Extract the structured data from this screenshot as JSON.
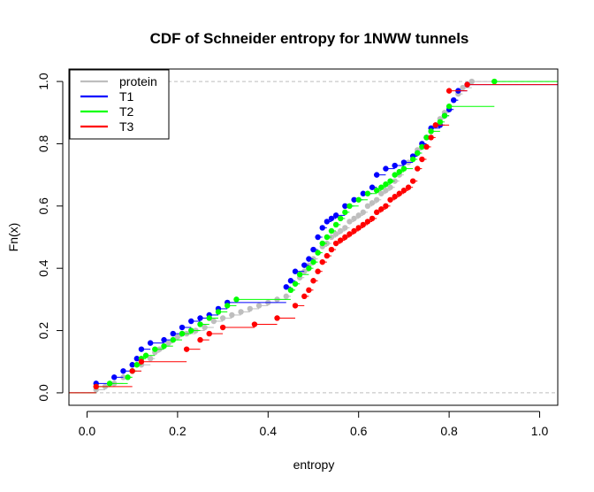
{
  "chart_data": {
    "type": "line",
    "step": true,
    "title": "CDF of Schneider entropy for 1NWW  tunnels",
    "xlabel": "entropy",
    "ylabel": "Fn(x)",
    "xlim": [
      -0.04,
      1.04
    ],
    "ylim": [
      -0.04,
      1.04
    ],
    "xticks": [
      0.0,
      0.2,
      0.4,
      0.6,
      0.8,
      1.0
    ],
    "yticks": [
      0.0,
      0.2,
      0.4,
      0.6,
      0.8,
      1.0
    ],
    "xtick_labels": [
      "0.0",
      "0.2",
      "0.4",
      "0.6",
      "0.8",
      "1.0"
    ],
    "ytick_labels": [
      "0.0",
      "0.2",
      "0.4",
      "0.6",
      "0.8",
      "1.0"
    ],
    "reference_lines_y": [
      0,
      1
    ],
    "legend_position": "top-left",
    "series": [
      {
        "name": "protein",
        "color": "#bebebe",
        "x": [
          0.02,
          0.04,
          0.06,
          0.08,
          0.1,
          0.12,
          0.14,
          0.15,
          0.16,
          0.17,
          0.18,
          0.19,
          0.2,
          0.21,
          0.22,
          0.24,
          0.26,
          0.28,
          0.3,
          0.32,
          0.34,
          0.36,
          0.38,
          0.4,
          0.42,
          0.44,
          0.45,
          0.46,
          0.47,
          0.48,
          0.49,
          0.5,
          0.51,
          0.52,
          0.53,
          0.54,
          0.55,
          0.56,
          0.57,
          0.58,
          0.59,
          0.6,
          0.61,
          0.62,
          0.63,
          0.64,
          0.65,
          0.66,
          0.67,
          0.68,
          0.69,
          0.7,
          0.71,
          0.72,
          0.73,
          0.74,
          0.75,
          0.76,
          0.77,
          0.78,
          0.79,
          0.8,
          0.81,
          0.82,
          0.83,
          0.85
        ],
        "y": [
          0.01,
          0.02,
          0.03,
          0.05,
          0.07,
          0.09,
          0.11,
          0.13,
          0.14,
          0.15,
          0.16,
          0.17,
          0.18,
          0.19,
          0.19,
          0.2,
          0.21,
          0.23,
          0.24,
          0.25,
          0.26,
          0.27,
          0.28,
          0.29,
          0.3,
          0.31,
          0.33,
          0.35,
          0.37,
          0.39,
          0.41,
          0.43,
          0.45,
          0.47,
          0.48,
          0.5,
          0.51,
          0.52,
          0.53,
          0.55,
          0.56,
          0.57,
          0.58,
          0.6,
          0.61,
          0.62,
          0.64,
          0.65,
          0.66,
          0.68,
          0.7,
          0.72,
          0.74,
          0.76,
          0.78,
          0.8,
          0.82,
          0.84,
          0.86,
          0.88,
          0.9,
          0.92,
          0.94,
          0.96,
          0.98,
          1.0
        ]
      },
      {
        "name": "T1",
        "color": "#0000ff",
        "x": [
          0.02,
          0.06,
          0.08,
          0.1,
          0.11,
          0.12,
          0.14,
          0.17,
          0.19,
          0.21,
          0.23,
          0.25,
          0.27,
          0.29,
          0.31,
          0.44,
          0.45,
          0.46,
          0.48,
          0.49,
          0.5,
          0.51,
          0.52,
          0.53,
          0.54,
          0.55,
          0.57,
          0.59,
          0.61,
          0.63,
          0.64,
          0.66,
          0.68,
          0.7,
          0.72,
          0.73,
          0.74,
          0.75,
          0.76,
          0.78,
          0.79,
          0.8,
          0.81,
          0.82,
          0.84
        ],
        "y": [
          0.03,
          0.05,
          0.07,
          0.09,
          0.11,
          0.14,
          0.16,
          0.17,
          0.19,
          0.21,
          0.23,
          0.24,
          0.25,
          0.27,
          0.29,
          0.34,
          0.36,
          0.39,
          0.41,
          0.43,
          0.46,
          0.5,
          0.53,
          0.55,
          0.56,
          0.57,
          0.6,
          0.62,
          0.64,
          0.66,
          0.7,
          0.72,
          0.73,
          0.74,
          0.76,
          0.77,
          0.8,
          0.82,
          0.85,
          0.86,
          0.89,
          0.91,
          0.94,
          0.97,
          0.99
        ]
      },
      {
        "name": "T2",
        "color": "#00ff00",
        "x": [
          0.02,
          0.05,
          0.09,
          0.1,
          0.11,
          0.12,
          0.13,
          0.15,
          0.17,
          0.19,
          0.21,
          0.23,
          0.25,
          0.27,
          0.29,
          0.31,
          0.33,
          0.45,
          0.46,
          0.47,
          0.49,
          0.5,
          0.51,
          0.52,
          0.53,
          0.54,
          0.55,
          0.56,
          0.57,
          0.58,
          0.6,
          0.62,
          0.64,
          0.65,
          0.66,
          0.67,
          0.68,
          0.69,
          0.7,
          0.72,
          0.73,
          0.74,
          0.75,
          0.76,
          0.78,
          0.79,
          0.8,
          0.9
        ],
        "y": [
          0.02,
          0.03,
          0.05,
          0.07,
          0.09,
          0.11,
          0.12,
          0.14,
          0.15,
          0.17,
          0.19,
          0.2,
          0.22,
          0.24,
          0.26,
          0.28,
          0.3,
          0.33,
          0.35,
          0.38,
          0.4,
          0.42,
          0.45,
          0.48,
          0.5,
          0.52,
          0.54,
          0.56,
          0.58,
          0.6,
          0.62,
          0.64,
          0.65,
          0.66,
          0.67,
          0.68,
          0.7,
          0.71,
          0.72,
          0.75,
          0.77,
          0.79,
          0.82,
          0.84,
          0.87,
          0.89,
          0.92,
          1.0
        ]
      },
      {
        "name": "T3",
        "color": "#ff0000",
        "x": [
          0.02,
          0.1,
          0.12,
          0.22,
          0.25,
          0.27,
          0.3,
          0.37,
          0.42,
          0.46,
          0.48,
          0.49,
          0.5,
          0.51,
          0.52,
          0.53,
          0.54,
          0.55,
          0.56,
          0.57,
          0.58,
          0.59,
          0.6,
          0.61,
          0.62,
          0.63,
          0.64,
          0.65,
          0.66,
          0.67,
          0.68,
          0.69,
          0.7,
          0.71,
          0.72,
          0.73,
          0.74,
          0.75,
          0.76,
          0.77,
          0.8,
          0.84
        ],
        "y": [
          0.02,
          0.07,
          0.1,
          0.14,
          0.17,
          0.19,
          0.21,
          0.22,
          0.24,
          0.28,
          0.31,
          0.33,
          0.36,
          0.39,
          0.42,
          0.44,
          0.46,
          0.48,
          0.49,
          0.5,
          0.51,
          0.52,
          0.53,
          0.54,
          0.55,
          0.56,
          0.58,
          0.59,
          0.6,
          0.62,
          0.63,
          0.64,
          0.65,
          0.66,
          0.68,
          0.72,
          0.75,
          0.79,
          0.82,
          0.86,
          0.97,
          0.99
        ]
      }
    ]
  }
}
